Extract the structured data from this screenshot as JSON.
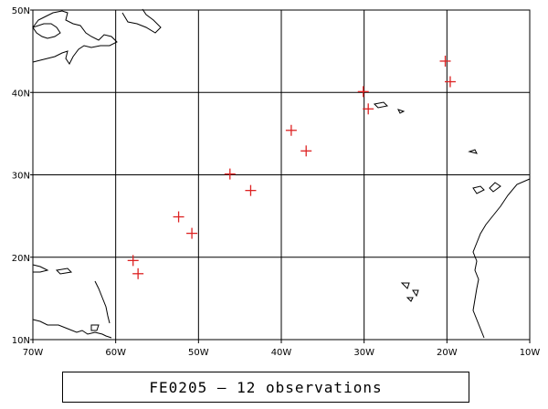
{
  "map": {
    "lon_range": [
      -70,
      -10
    ],
    "lat_range": [
      10,
      50
    ],
    "lat_tick_labels": [
      "50N",
      "40N",
      "30N",
      "20N",
      "10N"
    ],
    "lon_tick_labels": [
      "70W",
      "60W",
      "50W",
      "40W",
      "30W",
      "20W",
      "10W"
    ],
    "grid": true,
    "marker_color": "#dd2222",
    "observations": [
      {
        "lon": -57.9,
        "lat": 19.6
      },
      {
        "lon": -57.3,
        "lat": 18.0
      },
      {
        "lon": -52.4,
        "lat": 24.9
      },
      {
        "lon": -50.8,
        "lat": 22.9
      },
      {
        "lon": -46.2,
        "lat": 30.1
      },
      {
        "lon": -43.7,
        "lat": 28.1
      },
      {
        "lon": -38.8,
        "lat": 35.4
      },
      {
        "lon": -37.0,
        "lat": 32.9
      },
      {
        "lon": -30.1,
        "lat": 40.1
      },
      {
        "lon": -29.5,
        "lat": 38.0
      },
      {
        "lon": -20.2,
        "lat": 43.8
      },
      {
        "lon": -19.6,
        "lat": 41.3
      }
    ]
  },
  "caption": "FE0205 – 12 observations"
}
